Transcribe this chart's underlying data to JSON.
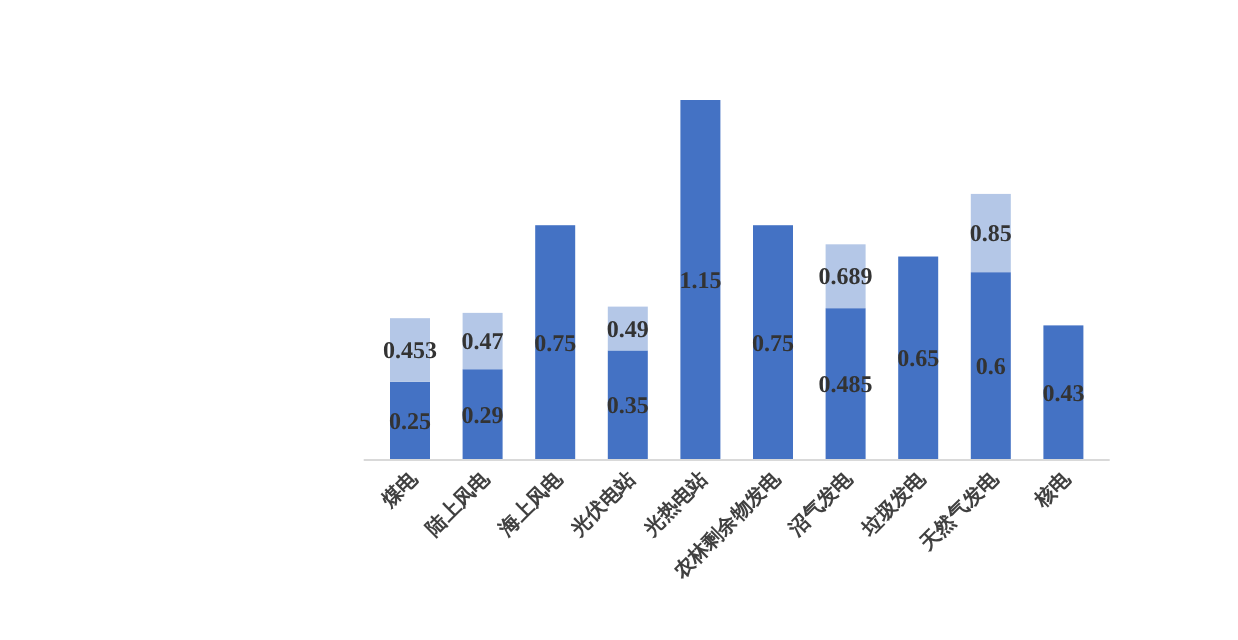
{
  "chart_data": {
    "type": "bar",
    "stacked": true,
    "categories": [
      "煤电",
      "陆上风电",
      "海上风电",
      "光伏电站",
      "光热电站",
      "农林剩余物发电",
      "沼气发电",
      "垃圾发电",
      "天然气发电",
      "核电"
    ],
    "series": [
      {
        "color": "#4472c4",
        "values": [
          0.25,
          0.29,
          0.75,
          0.35,
          1.15,
          0.75,
          0.485,
          0.65,
          0.6,
          0.43
        ],
        "value_labels": [
          "0.25",
          "0.29",
          "0.75",
          "0.35",
          "1.15",
          "0.75",
          "0.485",
          "0.65",
          "0.6",
          "0.43"
        ]
      },
      {
        "color": "#b4c7e7",
        "values": [
          0.203,
          0.18,
          null,
          0.14,
          null,
          null,
          0.204,
          null,
          0.25,
          null
        ]
      }
    ],
    "totals": [
      "0.453",
      "0.47",
      null,
      "0.49",
      null,
      null,
      "0.689",
      null,
      "0.85",
      null
    ]
  }
}
